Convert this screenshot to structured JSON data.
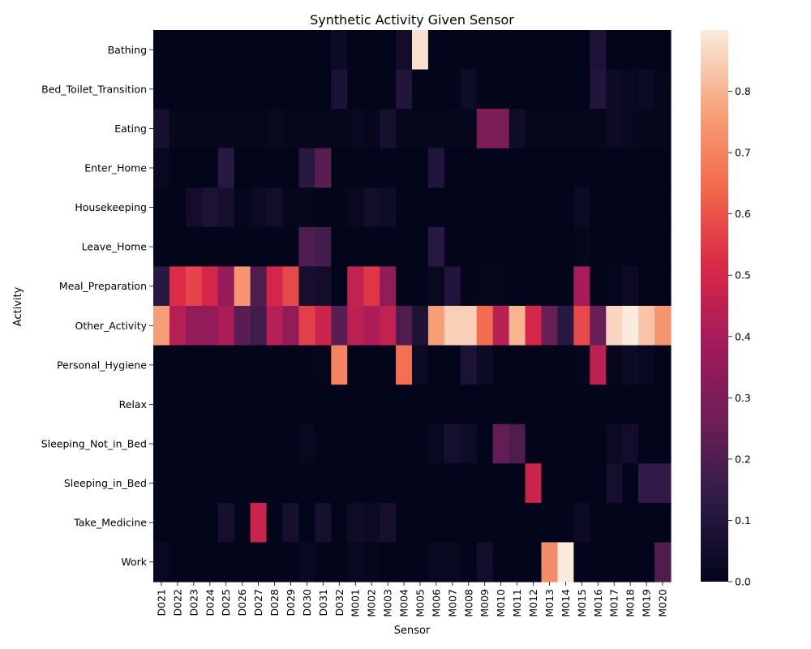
{
  "chart_data": {
    "type": "heatmap",
    "title": "Synthetic Activity Given Sensor",
    "xlabel": "Sensor",
    "ylabel": "Activity",
    "columns": [
      "D021",
      "D022",
      "D023",
      "D024",
      "D025",
      "D026",
      "D027",
      "D028",
      "D029",
      "D030",
      "D031",
      "D032",
      "M001",
      "M002",
      "M003",
      "M004",
      "M005",
      "M006",
      "M007",
      "M008",
      "M009",
      "M010",
      "M011",
      "M012",
      "M013",
      "M014",
      "M015",
      "M016",
      "M017",
      "M018",
      "M019",
      "M020"
    ],
    "rows": [
      "Bathing",
      "Bed_Toilet_Transition",
      "Eating",
      "Enter_Home",
      "Housekeeping",
      "Leave_Home",
      "Meal_Preparation",
      "Other_Activity",
      "Personal_Hygiene",
      "Relax",
      "Sleeping_Not_in_Bed",
      "Sleeping_in_Bed",
      "Take_Medicine",
      "Work"
    ],
    "values": [
      [
        0,
        0,
        0,
        0,
        0,
        0,
        0,
        0,
        0,
        0,
        0,
        0.03,
        0,
        0,
        0,
        0.05,
        0.88,
        0,
        0,
        0,
        0,
        0,
        0,
        0,
        0,
        0,
        0,
        0.08,
        0,
        0,
        0,
        0
      ],
      [
        0,
        0,
        0,
        0,
        0,
        0,
        0,
        0,
        0,
        0,
        0,
        0.08,
        0,
        0,
        0,
        0.1,
        0,
        0,
        0,
        0.04,
        0,
        0,
        0,
        0,
        0,
        0,
        0,
        0.1,
        0.03,
        0.02,
        0.03,
        0.01
      ],
      [
        0.06,
        0.01,
        0.01,
        0.01,
        0.01,
        0.01,
        0.01,
        0.02,
        0.01,
        0.01,
        0.01,
        0.01,
        0.02,
        0.01,
        0.06,
        0.01,
        0.01,
        0.01,
        0.01,
        0.01,
        0.3,
        0.3,
        0.04,
        0.01,
        0.01,
        0.01,
        0.01,
        0.01,
        0.03,
        0.02,
        0.01,
        0.01
      ],
      [
        0.02,
        0,
        0,
        0,
        0.12,
        0,
        0,
        0,
        0,
        0.12,
        0.22,
        0,
        0,
        0,
        0,
        0,
        0,
        0.1,
        0,
        0,
        0,
        0,
        0,
        0,
        0,
        0,
        0,
        0,
        0,
        0,
        0,
        0
      ],
      [
        0,
        0,
        0.05,
        0.08,
        0.06,
        0.01,
        0.03,
        0.05,
        0.01,
        0.01,
        0,
        0,
        0.02,
        0.05,
        0.04,
        0,
        0,
        0,
        0,
        0,
        0,
        0,
        0,
        0,
        0,
        0,
        0.03,
        0,
        0,
        0,
        0,
        0
      ],
      [
        0,
        0,
        0,
        0,
        0,
        0,
        0,
        0,
        0,
        0.2,
        0.18,
        0,
        0,
        0,
        0,
        0,
        0,
        0.12,
        0,
        0,
        0,
        0,
        0,
        0,
        0,
        0,
        0.01,
        0,
        0,
        0,
        0,
        0
      ],
      [
        0.12,
        0.52,
        0.57,
        0.5,
        0.36,
        0.74,
        0.2,
        0.5,
        0.58,
        0.06,
        0.05,
        0,
        0.46,
        0.54,
        0.35,
        0,
        0,
        0.02,
        0.1,
        0,
        0.01,
        0.01,
        0,
        0,
        0,
        0,
        0.4,
        0,
        0.01,
        0.03,
        0,
        0
      ],
      [
        0.76,
        0.43,
        0.35,
        0.35,
        0.41,
        0.22,
        0.17,
        0.43,
        0.35,
        0.56,
        0.48,
        0.22,
        0.45,
        0.41,
        0.46,
        0.2,
        0.08,
        0.76,
        0.85,
        0.85,
        0.65,
        0.44,
        0.8,
        0.5,
        0.25,
        0.12,
        0.58,
        0.25,
        0.86,
        0.9,
        0.83,
        0.74
      ],
      [
        0,
        0,
        0,
        0,
        0,
        0,
        0,
        0,
        0,
        0,
        0.01,
        0.7,
        0,
        0,
        0,
        0.66,
        0.03,
        0,
        0,
        0.08,
        0.03,
        0,
        0,
        0,
        0,
        0,
        0.01,
        0.45,
        0.01,
        0.03,
        0.02,
        0
      ],
      [
        0,
        0,
        0,
        0,
        0,
        0,
        0,
        0,
        0,
        0,
        0,
        0,
        0,
        0,
        0,
        0,
        0,
        0,
        0,
        0,
        0,
        0,
        0,
        0,
        0,
        0,
        0,
        0,
        0,
        0,
        0,
        0
      ],
      [
        0,
        0,
        0,
        0,
        0,
        0,
        0,
        0,
        0,
        0.02,
        0,
        0,
        0,
        0,
        0,
        0,
        0,
        0.02,
        0.06,
        0.04,
        0,
        0.24,
        0.2,
        0,
        0,
        0,
        0,
        0,
        0.03,
        0.05,
        0,
        0
      ],
      [
        0,
        0,
        0,
        0,
        0,
        0,
        0,
        0,
        0,
        0,
        0,
        0,
        0,
        0,
        0,
        0,
        0,
        0,
        0,
        0,
        0,
        0,
        0,
        0.48,
        0,
        0,
        0,
        0,
        0.06,
        0,
        0.14,
        0.14
      ],
      [
        0,
        0,
        0,
        0,
        0.06,
        0,
        0.48,
        0,
        0.06,
        0,
        0.06,
        0,
        0.04,
        0.03,
        0.06,
        0,
        0,
        0,
        0,
        0,
        0,
        0,
        0,
        0,
        0,
        0,
        0.03,
        0,
        0,
        0,
        0,
        0
      ],
      [
        0.02,
        0,
        0,
        0,
        0,
        0,
        0,
        0,
        0,
        0.02,
        0,
        0,
        0.02,
        0.01,
        0,
        0,
        0,
        0.02,
        0.02,
        0,
        0.05,
        0,
        0,
        0,
        0.72,
        0.9,
        0,
        0,
        0,
        0,
        0,
        0.2
      ]
    ],
    "colorbar": {
      "range": [
        0,
        0.9
      ],
      "ticks": [
        "0.0",
        "0.1",
        "0.2",
        "0.3",
        "0.4",
        "0.5",
        "0.6",
        "0.7",
        "0.8"
      ]
    },
    "colormap": [
      "#03051a",
      "#2b1a45",
      "#6a1f56",
      "#a11a5b",
      "#d92847",
      "#f3694d",
      "#f6a47b",
      "#faebdd"
    ]
  }
}
